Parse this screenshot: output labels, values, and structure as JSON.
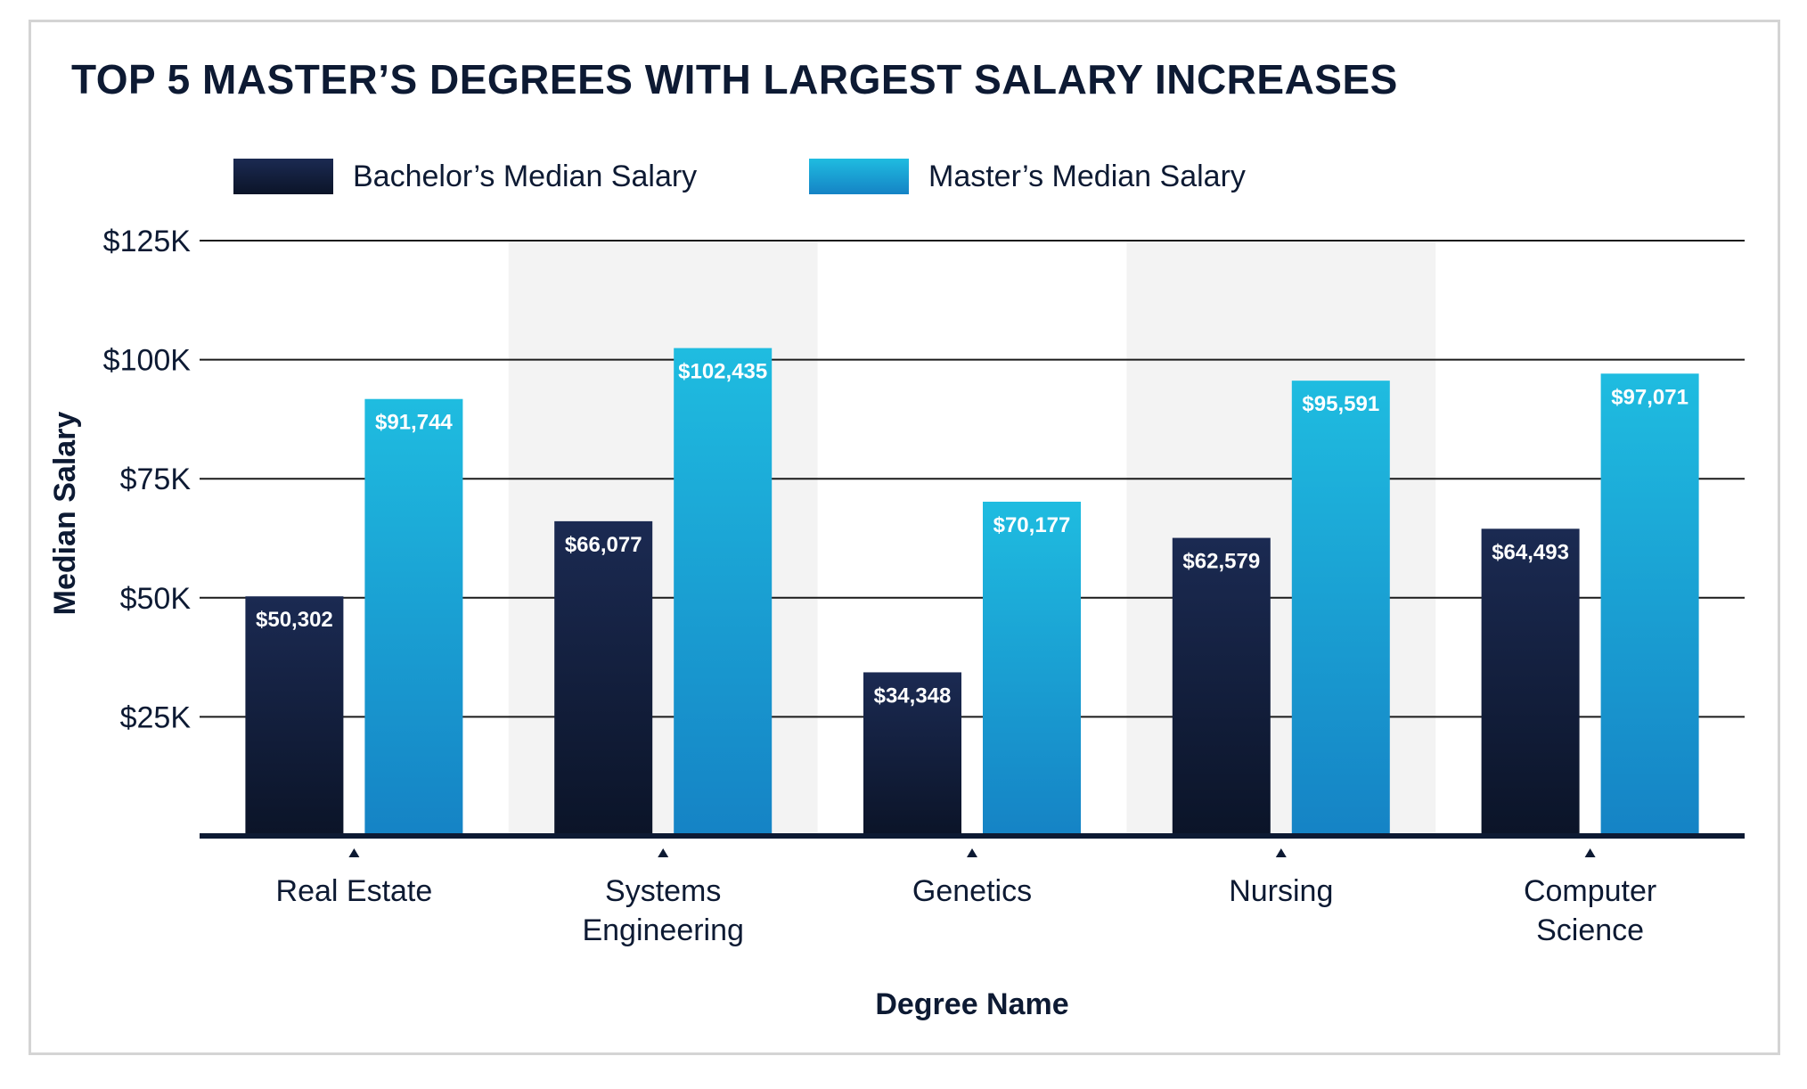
{
  "chart_data": {
    "type": "bar",
    "title": "TOP 5 MASTER’S DEGREES WITH LARGEST SALARY INCREASES",
    "xlabel": "Degree Name",
    "ylabel": "Median Salary",
    "ylim": [
      0,
      125000
    ],
    "yticks": [
      {
        "value": 25000,
        "label": "$25K"
      },
      {
        "value": 50000,
        "label": "$50K"
      },
      {
        "value": 75000,
        "label": "$75K"
      },
      {
        "value": 100000,
        "label": "$100K"
      },
      {
        "value": 125000,
        "label": "$125K"
      }
    ],
    "categories": [
      [
        "Real Estate"
      ],
      [
        "Systems",
        "Engineering"
      ],
      [
        "Genetics"
      ],
      [
        "Nursing"
      ],
      [
        "Computer",
        "Science"
      ]
    ],
    "series": [
      {
        "name": "Bachelor’s Median Salary",
        "values": [
          50302,
          66077,
          34348,
          62579,
          64493
        ],
        "labels": [
          "$50,302",
          "$66,077",
          "$34,348",
          "$62,579",
          "$64,493"
        ],
        "color_top": "#1b2a52",
        "color_bottom": "#0b1428"
      },
      {
        "name": "Master’s Median Salary",
        "values": [
          91744,
          102435,
          70177,
          95591,
          97071
        ],
        "labels": [
          "$91,744",
          "$102,435",
          "$70,177",
          "$95,591",
          "$97,071"
        ],
        "color_top": "#1fbce0",
        "color_bottom": "#1583c5"
      }
    ],
    "grid": true,
    "legend": "top-left",
    "alternate_band_color": "#f3f3f3",
    "gridline_color": "#1a1a1a",
    "axis_color": "#0d1a33"
  }
}
